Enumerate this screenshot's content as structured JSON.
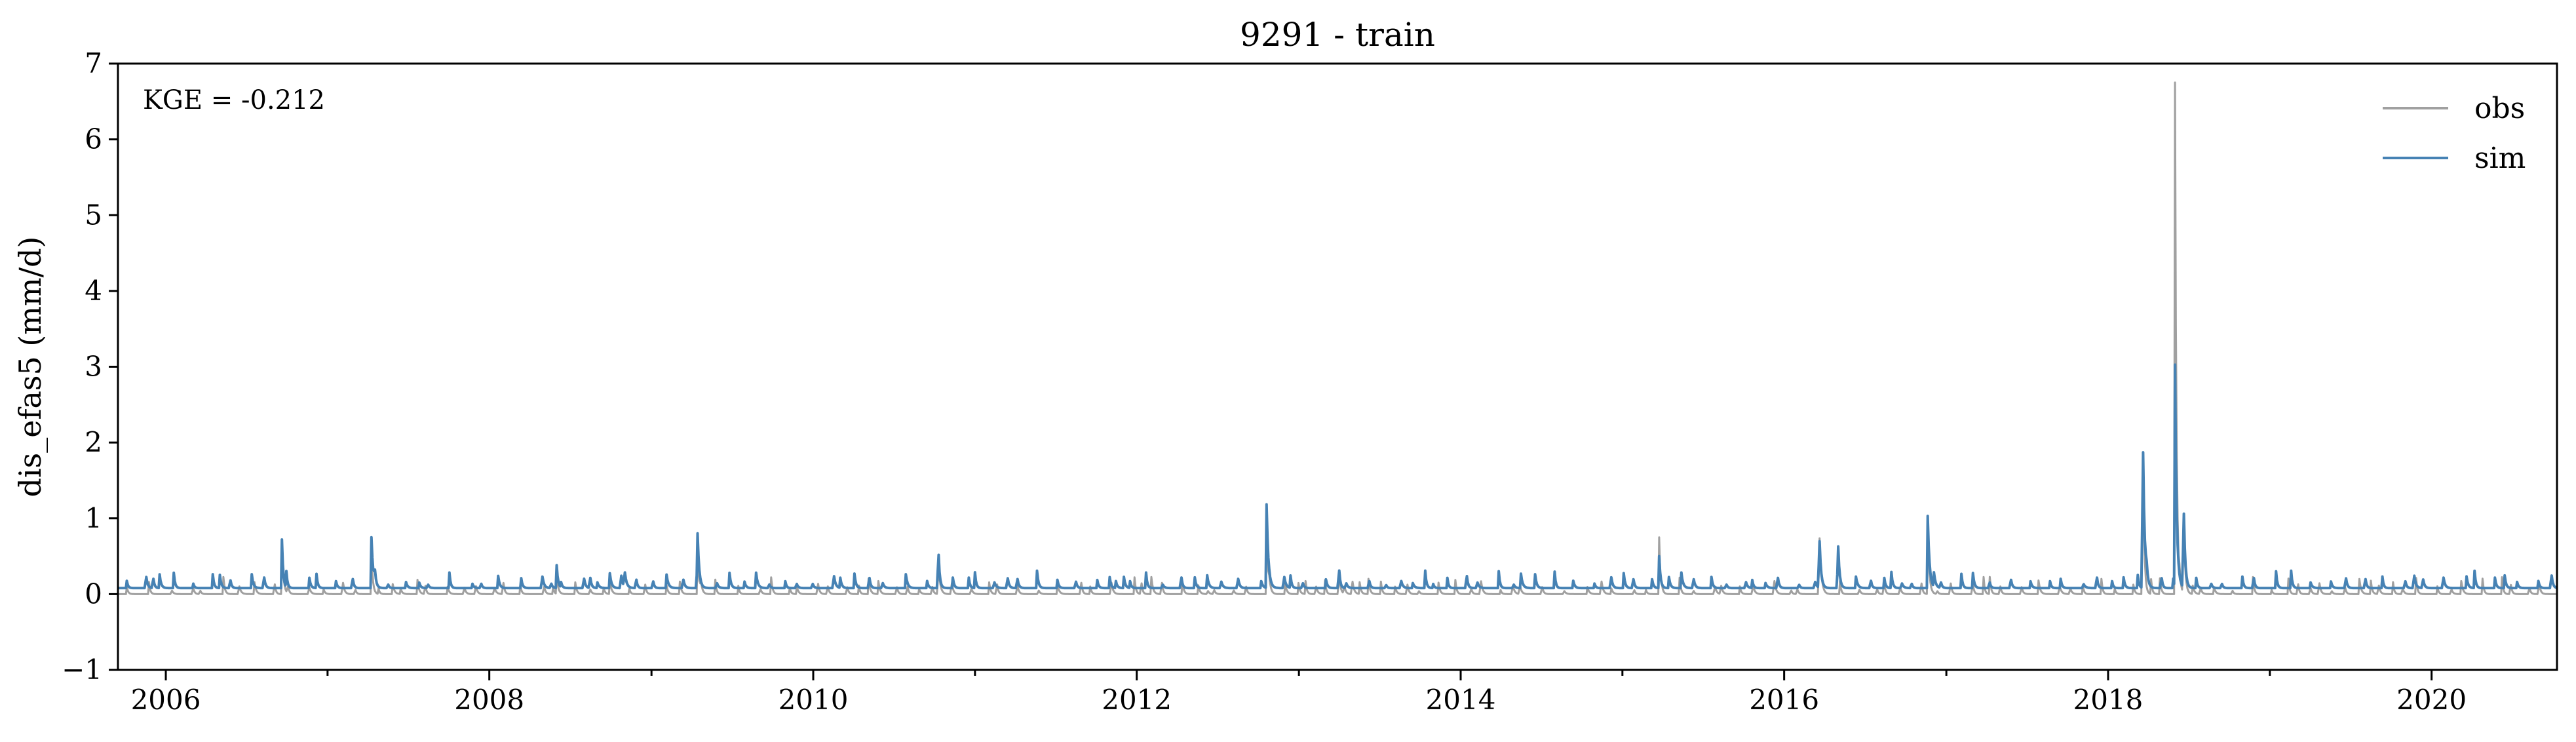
{
  "chart_data": {
    "type": "line",
    "title": "9291 - train",
    "ylabel": "dis_efas5 (mm/d)",
    "xlabel": "",
    "xlim": [
      "2005-09-15",
      "2020-10-10"
    ],
    "ylim": [
      -1,
      7
    ],
    "yticks": [
      -1,
      0,
      1,
      2,
      3,
      4,
      5,
      6,
      7
    ],
    "ytick_labels": [
      "−1",
      "0",
      "1",
      "2",
      "3",
      "4",
      "5",
      "6",
      "7"
    ],
    "xticks": [
      "2006-01-01",
      "2008-01-01",
      "2010-01-01",
      "2012-01-01",
      "2014-01-01",
      "2016-01-01",
      "2018-01-01",
      "2020-01-01"
    ],
    "xtick_labels": [
      "2006",
      "2008",
      "2010",
      "2012",
      "2014",
      "2016",
      "2018",
      "2020"
    ],
    "minor_xticks": [
      "2007-01-01",
      "2009-01-01",
      "2011-01-01",
      "2013-01-01",
      "2015-01-01",
      "2017-01-01",
      "2019-01-01"
    ],
    "legend_placement": "top-right",
    "grid": false,
    "annotation": "KGE = -0.212",
    "series": [
      {
        "name": "obs",
        "color": "#a0a0a0",
        "baseline": 0.0,
        "peaks": [
          [
            "2006-09-20",
            0.6
          ],
          [
            "2007-04-10",
            0.55
          ],
          [
            "2008-06-01",
            0.25
          ],
          [
            "2009-04-15",
            0.6
          ],
          [
            "2010-10-10",
            0.45
          ],
          [
            "2012-10-20",
            1.0
          ],
          [
            "2013-04-01",
            0.3
          ],
          [
            "2015-03-25",
            0.75
          ],
          [
            "2016-03-20",
            0.75
          ],
          [
            "2016-11-20",
            0.9
          ],
          [
            "2018-03-20",
            2.7
          ],
          [
            "2018-06-01",
            6.75
          ],
          [
            "2018-06-20",
            1.2
          ]
        ]
      },
      {
        "name": "sim",
        "color": "#4682b4",
        "baseline": 0.08,
        "peaks": [
          [
            "2006-09-20",
            0.72
          ],
          [
            "2007-04-10",
            0.75
          ],
          [
            "2008-06-01",
            0.38
          ],
          [
            "2008-11-01",
            0.32
          ],
          [
            "2009-04-15",
            0.72
          ],
          [
            "2010-10-10",
            0.57
          ],
          [
            "2012-10-20",
            1.18
          ],
          [
            "2013-04-01",
            0.42
          ],
          [
            "2015-03-25",
            0.5
          ],
          [
            "2016-03-20",
            0.9
          ],
          [
            "2016-05-01",
            0.6
          ],
          [
            "2016-11-20",
            1.03
          ],
          [
            "2018-03-20",
            2.4
          ],
          [
            "2018-06-01",
            3.0
          ],
          [
            "2018-06-20",
            1.4
          ]
        ]
      }
    ]
  }
}
